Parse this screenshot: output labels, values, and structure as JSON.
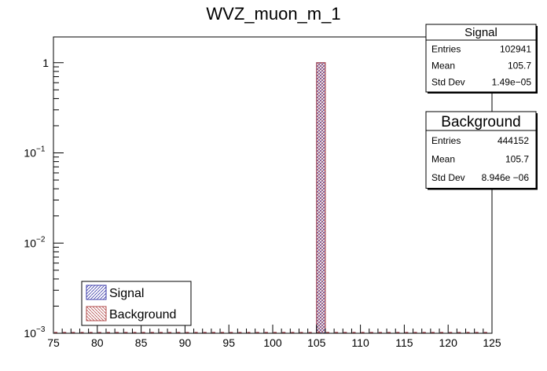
{
  "chart_data": {
    "type": "bar",
    "title": "WVZ_muon_m_1",
    "xlabel": "",
    "ylabel": "",
    "xlim": [
      75,
      125
    ],
    "ylim": [
      0.001,
      2
    ],
    "y_scale": "log",
    "x_ticks": [
      75,
      80,
      85,
      90,
      95,
      100,
      105,
      110,
      115,
      120,
      125
    ],
    "y_ticks": [
      {
        "value": 0.001,
        "base": "10",
        "exp": "−3"
      },
      {
        "value": 0.01,
        "base": "10",
        "exp": "−2"
      },
      {
        "value": 0.1,
        "base": "10",
        "exp": "−1"
      },
      {
        "value": 1,
        "label": "1"
      }
    ],
    "bin_width": 1,
    "series": [
      {
        "name": "Signal",
        "color": "#3a3aa8",
        "bins": [
          {
            "x_low": 105,
            "x_high": 106,
            "value": 1
          }
        ]
      },
      {
        "name": "Background",
        "color": "#b34d4d",
        "bins": [
          {
            "x_low": 105,
            "x_high": 106,
            "value": 1
          }
        ]
      }
    ],
    "stats": [
      {
        "title": "Signal",
        "rows": [
          {
            "label": "Entries",
            "value": "102941"
          },
          {
            "label": "Mean",
            "value": "105.7"
          },
          {
            "label": "Std Dev",
            "value": "1.49e−05"
          }
        ]
      },
      {
        "title": "Background",
        "rows": [
          {
            "label": "Entries",
            "value": "444152"
          },
          {
            "label": "Mean",
            "value": "105.7"
          },
          {
            "label": "Std Dev",
            "value": "8.946e −06"
          }
        ]
      }
    ],
    "legend": {
      "position": "bottom-left",
      "entries": [
        "Signal",
        "Background"
      ]
    },
    "grid": false
  }
}
